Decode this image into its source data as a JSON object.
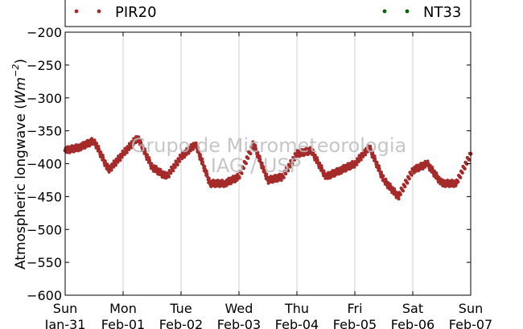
{
  "chart_data": {
    "type": "scatter",
    "ylabel_text": "Atmospheric longwave (",
    "ylabel_unit_base": "Wm",
    "ylabel_unit_exp": "−2",
    "ylabel_close": ")",
    "ylim": [
      -600,
      -200
    ],
    "yticks": [
      -200,
      -250,
      -300,
      -350,
      -400,
      -450,
      -500,
      -550,
      -600
    ],
    "ytick_labels": [
      "−200",
      "−250",
      "−300",
      "−350",
      "−400",
      "−450",
      "−500",
      "−550",
      "−600"
    ],
    "xlim": [
      "2016-01-31",
      "2016-02-07"
    ],
    "xticks": [
      {
        "day": "Sun",
        "date": "Jan-31"
      },
      {
        "day": "Mon",
        "date": "Feb-01"
      },
      {
        "day": "Tue",
        "date": "Feb-02"
      },
      {
        "day": "Wed",
        "date": "Feb-03"
      },
      {
        "day": "Thu",
        "date": "Feb-04"
      },
      {
        "day": "Fri",
        "date": "Feb-05"
      },
      {
        "day": "Sat",
        "date": "Feb-06"
      },
      {
        "day": "Sun",
        "date": "Feb-07"
      }
    ],
    "grid": "vertical",
    "legend_placement": "top",
    "series": [
      {
        "name": "PIR20",
        "color": "#a52a2a",
        "x": [
          "2016-01-31T00:00",
          "2016-01-31T06:00",
          "2016-01-31T12:00",
          "2016-01-31T18:00",
          "2016-02-01T00:00",
          "2016-02-01T06:00",
          "2016-02-01T12:00",
          "2016-02-01T18:00",
          "2016-02-02T00:00",
          "2016-02-02T06:00",
          "2016-02-02T12:00",
          "2016-02-02T18:00",
          "2016-02-03T00:00",
          "2016-02-03T06:00",
          "2016-02-03T12:00",
          "2016-02-03T18:00",
          "2016-02-04T00:00",
          "2016-02-04T06:00",
          "2016-02-04T12:00",
          "2016-02-04T18:00",
          "2016-02-05T00:00",
          "2016-02-05T06:00",
          "2016-02-05T12:00",
          "2016-02-05T18:00",
          "2016-02-06T00:00",
          "2016-02-06T06:00",
          "2016-02-06T12:00",
          "2016-02-06T18:00",
          "2016-02-07T00:00"
        ],
        "y": [
          -380,
          -375,
          -365,
          -410,
          -385,
          -360,
          -405,
          -420,
          -390,
          -370,
          -430,
          -430,
          -420,
          -370,
          -425,
          -420,
          -385,
          -380,
          -420,
          -410,
          -400,
          -375,
          -425,
          -450,
          -410,
          -400,
          -430,
          -430,
          -385
        ]
      },
      {
        "name": "NT33",
        "color": "#006400",
        "x": [],
        "y": []
      }
    ],
    "annotations": [
      "Grupo de Micrometeorologia",
      "IAG / USP"
    ]
  }
}
